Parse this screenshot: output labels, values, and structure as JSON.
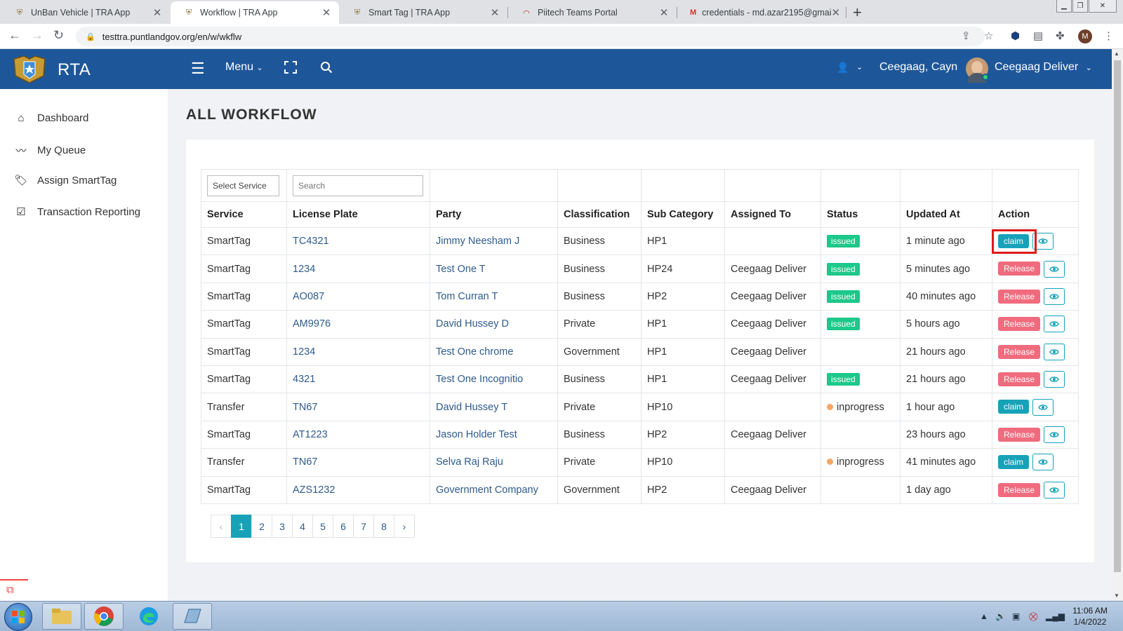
{
  "browser": {
    "tabs": [
      {
        "title": "UnBan Vehicle | TRA App",
        "active": false
      },
      {
        "title": "Workflow | TRA App",
        "active": true
      },
      {
        "title": "Smart Tag | TRA App",
        "active": false
      },
      {
        "title": "Piitech Teams Portal",
        "active": false
      },
      {
        "title": "credentials - md.azar2195@gmai",
        "active": false
      }
    ],
    "url": "testtra.puntlandgov.org/en/w/wkflw",
    "profile_initial": "M"
  },
  "header": {
    "brand": "RTA",
    "menu_label": "Menu",
    "location": "Ceegaag, Cayn",
    "username": "Ceegaag Deliver"
  },
  "sidebar": {
    "items": [
      {
        "label": "Dashboard",
        "icon": "home-icon"
      },
      {
        "label": "My Queue",
        "icon": "trend-line-icon"
      },
      {
        "label": "Assign SmartTag",
        "icon": "tags-icon"
      },
      {
        "label": "Transaction Reporting",
        "icon": "check-square-icon"
      }
    ]
  },
  "page": {
    "title": "ALL WORKFLOW",
    "filter": {
      "select_service": "Select Service",
      "search_placeholder": "Search"
    },
    "columns": [
      "Service",
      "License Plate",
      "Party",
      "Classification",
      "Sub Category",
      "Assigned To",
      "Status",
      "Updated At",
      "Action"
    ],
    "rows": [
      {
        "service": "SmartTag",
        "plate": "TC4321",
        "party": "Jimmy Neesham J",
        "classification": "Business",
        "sub_category": "HP1",
        "assigned_to": "",
        "status": "issued",
        "updated": "1 minute ago",
        "action": "claim"
      },
      {
        "service": "SmartTag",
        "plate": "1234",
        "party": "Test One T",
        "classification": "Business",
        "sub_category": "HP24",
        "assigned_to": "Ceegaag Deliver",
        "status": "issued",
        "updated": "5 minutes ago",
        "action": "Release"
      },
      {
        "service": "SmartTag",
        "plate": "AO087",
        "party": "Tom Curran T",
        "classification": "Business",
        "sub_category": "HP2",
        "assigned_to": "Ceegaag Deliver",
        "status": "issued",
        "updated": "40 minutes ago",
        "action": "Release"
      },
      {
        "service": "SmartTag",
        "plate": "AM9976",
        "party": "David Hussey D",
        "classification": "Private",
        "sub_category": "HP1",
        "assigned_to": "Ceegaag Deliver",
        "status": "issued",
        "updated": "5 hours ago",
        "action": "Release"
      },
      {
        "service": "SmartTag",
        "plate": "1234",
        "party": "Test One chrome",
        "classification": "Government",
        "sub_category": "HP1",
        "assigned_to": "Ceegaag Deliver",
        "status": "",
        "updated": "21 hours ago",
        "action": "Release"
      },
      {
        "service": "SmartTag",
        "plate": "4321",
        "party": "Test One Incognitio",
        "classification": "Business",
        "sub_category": "HP1",
        "assigned_to": "Ceegaag Deliver",
        "status": "issued",
        "updated": "21 hours ago",
        "action": "Release"
      },
      {
        "service": "Transfer",
        "plate": "TN67",
        "party": "David Hussey T",
        "classification": "Private",
        "sub_category": "HP10",
        "assigned_to": "",
        "status": "inprogress",
        "updated": "1 hour ago",
        "action": "claim"
      },
      {
        "service": "SmartTag",
        "plate": "AT1223",
        "party": "Jason Holder Test",
        "classification": "Business",
        "sub_category": "HP2",
        "assigned_to": "Ceegaag Deliver",
        "status": "",
        "updated": "23 hours ago",
        "action": "Release"
      },
      {
        "service": "Transfer",
        "plate": "TN67",
        "party": "Selva Raj Raju",
        "classification": "Private",
        "sub_category": "HP10",
        "assigned_to": "",
        "status": "inprogress",
        "updated": "41 minutes ago",
        "action": "claim"
      },
      {
        "service": "SmartTag",
        "plate": "AZS1232",
        "party": "Government Company",
        "classification": "Government",
        "sub_category": "HP2",
        "assigned_to": "Ceegaag Deliver",
        "status": "",
        "updated": "1 day ago",
        "action": "Release"
      }
    ],
    "pagination": {
      "prev": "‹",
      "pages": [
        "1",
        "2",
        "3",
        "4",
        "5",
        "6",
        "7",
        "8"
      ],
      "current": "1",
      "next": "›"
    }
  },
  "colors": {
    "header_bg": "#1e5799",
    "issued": "#1cc88a",
    "claim": "#17a2b8",
    "release": "#f06b7d",
    "inprogress_dot": "#f6a766",
    "highlight_box": "#e01818"
  },
  "taskbar": {
    "time": "11:06 AM",
    "date": "1/4/2022"
  }
}
